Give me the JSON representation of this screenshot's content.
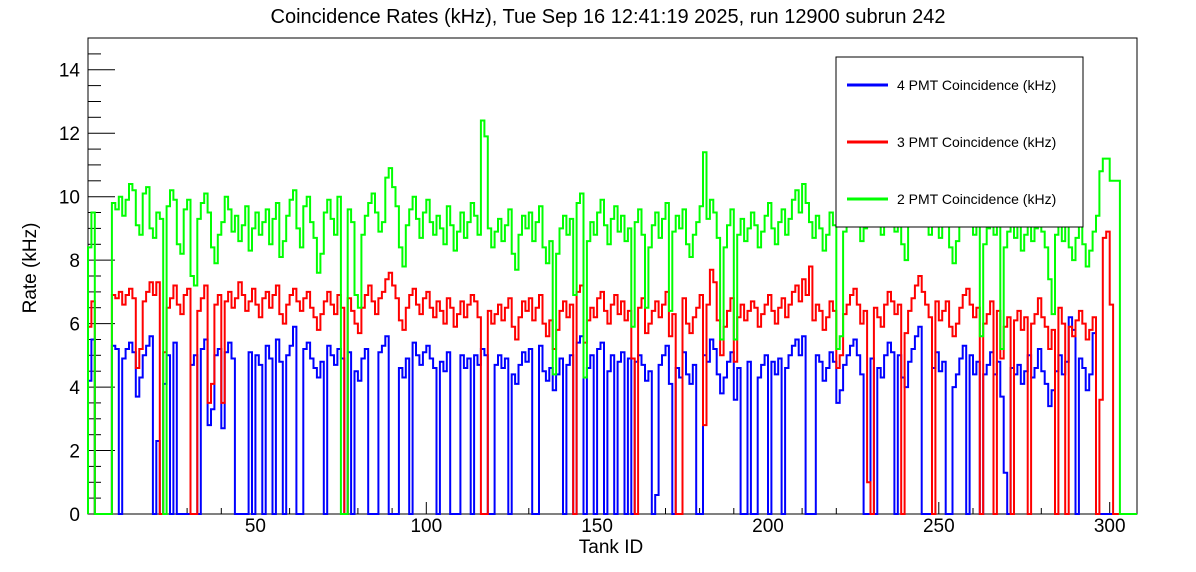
{
  "chart_data": {
    "type": "line",
    "style": "histogram-step",
    "title": "Coincidence Rates (kHz), Tue Sep 16 12:41:19 2025, run 12900 subrun 242",
    "xlabel": "Tank ID",
    "ylabel": "Rate (kHz)",
    "xlim": [
      1,
      308
    ],
    "ylim": [
      0,
      15
    ],
    "bin_start": 1,
    "bin_width": 1,
    "x_major_ticks": [
      50,
      100,
      150,
      200,
      250,
      300
    ],
    "x_minor_step": 10,
    "y_major_ticks": [
      0,
      2,
      4,
      6,
      8,
      10,
      12,
      14
    ],
    "y_minor_step": 0.5,
    "grid": false,
    "legend_position": "top-right",
    "frame_color": "#000000",
    "background_color": "#ffffff",
    "series": [
      {
        "name": "4 PMT Coincidence (kHz)",
        "color": "#0000ff",
        "values": [
          4.2,
          5.5,
          0,
          0,
          0,
          0,
          0,
          5.3,
          5.2,
          0,
          4.9,
          5.2,
          5.4,
          5.1,
          3.7,
          4.3,
          5.0,
          5.3,
          5.6,
          0,
          2.3,
          0,
          4.1,
          5.0,
          0,
          5.4,
          0,
          0,
          0,
          0,
          4.7,
          5.0,
          0,
          5.2,
          5.5,
          2.8,
          3.3,
          5.0,
          5.2,
          2.7,
          5.1,
          5.4,
          4.9,
          0,
          0,
          0,
          0,
          5.1,
          0,
          5.0,
          4.7,
          0,
          5.3,
          4.9,
          0,
          5.5,
          4.8,
          0,
          5.0,
          5.3,
          5.9,
          0,
          0,
          5.2,
          5.4,
          4.9,
          4.6,
          4.3,
          4.8,
          0,
          5.3,
          5.0,
          4.7,
          5.2,
          4.9,
          0,
          5.1,
          0,
          4.5,
          4.2,
          4.9,
          5.2,
          0,
          0,
          0,
          5.1,
          5.3,
          5.6,
          0,
          0,
          0,
          4.6,
          4.3,
          4.9,
          0,
          5.4,
          5.0,
          4.7,
          5.1,
          5.3,
          4.9,
          4.6,
          0,
          4.8,
          4.5,
          5.1,
          0,
          0,
          0,
          5.0,
          4.6,
          4.9,
          0,
          5.0,
          4.7,
          5.2,
          5.0,
          0,
          0,
          4.7,
          5.0,
          4.6,
          4.9,
          0,
          4.4,
          4.1,
          4.7,
          5.1,
          4.8,
          5.2,
          0,
          0,
          5.3,
          4.5,
          4.2,
          4.6,
          3.9,
          4.4,
          4.9,
          0,
          4.7,
          5.0,
          0,
          5.4,
          5.6,
          0,
          4.6,
          5.0,
          0,
          5.2,
          5.4,
          0,
          4.5,
          5.0,
          0,
          4.8,
          5.1,
          0,
          4.9,
          0,
          4.8,
          5.0,
          4.7,
          4.2,
          4.5,
          0,
          0.6,
          4.7,
          5.0,
          5.3,
          4.1,
          0,
          4.6,
          4.3,
          5.1,
          4.4,
          4.1,
          4.7,
          0,
          0,
          5.0,
          4.8,
          5.5,
          5.2,
          4.4,
          3.8,
          4.3,
          4.8,
          5.1,
          3.6,
          4.6,
          0,
          0,
          4.8,
          0,
          0,
          4.3,
          4.7,
          5.0,
          0,
          4.8,
          4.4,
          4.9,
          0,
          4.6,
          5.0,
          5.3,
          5.5,
          5.0,
          5.6,
          0,
          0,
          0,
          5.0,
          4.8,
          4.2,
          4.6,
          5.1,
          4.8,
          3.5,
          3.9,
          4.7,
          5.0,
          5.3,
          5.5,
          5.0,
          4.4,
          0,
          0,
          4.9,
          0,
          4.6,
          4.3,
          5.0,
          5.4,
          5.1,
          0,
          5.0,
          4.3,
          4.0,
          4.8,
          5.2,
          5.6,
          5.9,
          0,
          0,
          0,
          4.6,
          5.1,
          4.5,
          4.8,
          0,
          0,
          4.0,
          4.4,
          4.9,
          5.3,
          0,
          5.0,
          4.4,
          4.8,
          0,
          4.4,
          4.7,
          5.1,
          4.4,
          4.8,
          3.7,
          1.3,
          0,
          4.6,
          4.4,
          4.7,
          4.1,
          4.5,
          5.0,
          4.3,
          4.6,
          5.2,
          4.5,
          4.1,
          3.4,
          3.9,
          4.5,
          5.0,
          4.4,
          4.8,
          6.2,
          5.8,
          0,
          4.9,
          4.6,
          3.9,
          4.4,
          5.7,
          0,
          0,
          0,
          0,
          0,
          0,
          0,
          0,
          0,
          0,
          0,
          0
        ]
      },
      {
        "name": "3 PMT Coincidence (kHz)",
        "color": "#ff0000",
        "values": [
          5.9,
          6.7,
          0,
          0,
          0,
          0,
          0,
          6.9,
          6.8,
          7.0,
          6.6,
          6.9,
          7.1,
          6.8,
          4.6,
          5.2,
          6.7,
          7.0,
          7.3,
          6.9,
          7.3,
          0,
          5.1,
          6.5,
          6.8,
          7.2,
          6.6,
          6.3,
          6.9,
          7.1,
          0,
          0,
          6.4,
          6.8,
          7.2,
          3.5,
          4.1,
          6.6,
          6.9,
          3.5,
          6.7,
          7.0,
          6.5,
          6.8,
          7.3,
          6.9,
          6.4,
          6.7,
          7.1,
          6.6,
          6.2,
          6.8,
          7.0,
          6.5,
          6.9,
          7.2,
          6.3,
          6.0,
          6.6,
          6.9,
          7.1,
          6.7,
          6.4,
          6.8,
          7.0,
          6.5,
          6.2,
          5.8,
          6.3,
          6.7,
          7.0,
          6.6,
          6.3,
          6.9,
          6.5,
          0,
          6.8,
          6.4,
          6.0,
          5.7,
          6.5,
          6.9,
          7.2,
          6.7,
          6.3,
          6.8,
          7.0,
          7.4,
          7.6,
          7.2,
          6.8,
          6.1,
          5.8,
          6.5,
          6.9,
          7.1,
          6.6,
          6.3,
          6.8,
          7.0,
          6.5,
          6.2,
          6.7,
          6.4,
          6.0,
          6.8,
          6.5,
          5.9,
          6.3,
          6.7,
          6.2,
          6.6,
          6.9,
          6.7,
          6.2,
          0,
          0,
          6.4,
          6.0,
          6.3,
          6.6,
          6.1,
          6.5,
          6.8,
          5.9,
          5.5,
          6.2,
          6.7,
          6.4,
          6.8,
          6.1,
          6.5,
          6.9,
          6.0,
          5.6,
          6.1,
          5.2,
          5.8,
          6.4,
          6.7,
          6.2,
          6.6,
          0,
          7.0,
          7.2,
          5.4,
          6.1,
          6.5,
          6.2,
          6.8,
          7.0,
          6.4,
          6.0,
          6.6,
          6.9,
          6.3,
          6.7,
          6.1,
          6.4,
          4.9,
          0,
          6.5,
          6.8,
          5.7,
          6.0,
          6.4,
          6.7,
          6.2,
          6.6,
          7.0,
          5.6,
          6.3,
          0,
          0,
          6.8,
          6.0,
          5.7,
          6.2,
          6.5,
          6.9,
          2.8,
          6.6,
          7.7,
          7.3,
          6.1,
          5.0,
          5.9,
          6.4,
          6.8,
          4.8,
          6.2,
          6.6,
          6.1,
          6.4,
          6.7,
          6.5,
          5.9,
          6.3,
          6.6,
          6.9,
          6.4,
          6.0,
          6.5,
          6.8,
          6.2,
          6.6,
          7.0,
          7.2,
          6.7,
          7.4,
          6.9,
          7.8,
          6.1,
          6.6,
          6.4,
          5.8,
          6.2,
          6.7,
          6.4,
          4.6,
          5.0,
          6.3,
          6.6,
          6.9,
          7.1,
          6.6,
          6.0,
          6.4,
          1.0,
          0,
          6.5,
          6.2,
          5.9,
          6.6,
          7.0,
          6.7,
          6.3,
          6.6,
          0,
          5.7,
          6.4,
          6.8,
          7.2,
          7.5,
          7.0,
          6.6,
          6.2,
          0,
          6.7,
          6.1,
          6.4,
          6.7,
          5.9,
          5.6,
          6.0,
          6.5,
          6.9,
          7.1,
          6.6,
          6.2,
          6.5,
          0,
          6.0,
          6.3,
          6.7,
          0,
          6.4,
          4.9,
          5.9,
          6.2,
          0,
          6.1,
          6.4,
          5.8,
          6.2,
          0,
          6.0,
          6.3,
          6.8,
          6.2,
          5.9,
          5.2,
          5.8,
          0,
          6.5,
          6.0,
          0,
          5.9,
          5.6,
          6.1,
          6.4,
          6.0,
          5.5,
          5.8,
          6.2,
          0,
          3.6,
          8.7,
          8.9,
          6.6,
          0,
          0,
          0,
          0,
          0,
          0,
          0
        ]
      },
      {
        "name": "2 PMT Coincidence (kHz)",
        "color": "#00ff00",
        "values": [
          8.4,
          9.5,
          0,
          0,
          0,
          0,
          0,
          9.8,
          9.6,
          10.0,
          9.4,
          9.9,
          10.4,
          10.2,
          9.1,
          8.8,
          10.1,
          10.3,
          9.0,
          8.7,
          9.5,
          9.3,
          0,
          9.7,
          10.2,
          9.9,
          8.5,
          8.2,
          9.6,
          9.9,
          7.5,
          7.2,
          9.3,
          9.8,
          10.1,
          9.5,
          8.4,
          7.9,
          8.8,
          9.2,
          10.0,
          9.6,
          8.9,
          9.4,
          8.6,
          9.1,
          9.7,
          8.3,
          9.0,
          9.5,
          8.8,
          9.2,
          9.6,
          8.5,
          9.3,
          9.8,
          8.1,
          8.6,
          9.4,
          9.9,
          10.2,
          9.0,
          8.4,
          9.7,
          10.0,
          9.2,
          8.7,
          7.6,
          8.2,
          9.5,
          9.9,
          9.3,
          8.8,
          10.0,
          0,
          0,
          9.6,
          9.2,
          6.9,
          6.5,
          8.8,
          9.4,
          9.8,
          10.1,
          9.5,
          8.9,
          9.2,
          10.6,
          10.9,
          10.3,
          9.7,
          8.4,
          7.8,
          9.1,
          9.6,
          10.0,
          9.3,
          8.7,
          9.5,
          9.9,
          9.2,
          8.8,
          9.4,
          9.0,
          8.5,
          9.7,
          9.1,
          8.3,
          8.9,
          9.5,
          8.7,
          9.2,
          9.8,
          9.4,
          8.8,
          12.4,
          11.9,
          9.0,
          8.4,
          8.9,
          9.3,
          8.6,
          9.1,
          9.6,
          8.2,
          7.7,
          8.8,
          9.4,
          9.0,
          9.5,
          8.6,
          9.2,
          9.7,
          8.4,
          7.9,
          8.6,
          4.4,
          8.2,
          9.0,
          9.4,
          8.8,
          9.3,
          6.9,
          9.8,
          10.1,
          4.3,
          8.6,
          9.2,
          8.8,
          9.5,
          9.9,
          9.1,
          8.5,
          9.3,
          9.7,
          8.9,
          9.4,
          8.6,
          9.0,
          5.9,
          9.2,
          9.6,
          8.8,
          6.5,
          8.4,
          9.1,
          9.5,
          8.7,
          9.3,
          9.8,
          6.4,
          8.9,
          9.4,
          9.0,
          9.6,
          8.5,
          8.1,
          8.8,
          9.2,
          9.7,
          11.4,
          9.3,
          9.9,
          9.5,
          8.7,
          5.5,
          8.4,
          9.1,
          9.6,
          5.5,
          8.8,
          9.3,
          8.6,
          9.0,
          9.5,
          9.1,
          8.4,
          8.9,
          9.4,
          9.8,
          9.0,
          8.5,
          9.2,
          9.6,
          8.8,
          9.3,
          9.9,
          10.2,
          9.5,
          10.4,
          9.8,
          9.2,
          8.7,
          9.4,
          9.0,
          8.3,
          8.8,
          9.5,
          9.1,
          5.2,
          5.6,
          8.9,
          9.4,
          9.8,
          10.1,
          9.3,
          8.6,
          9.0,
          9.5,
          10.7,
          9.7,
          9.2,
          8.8,
          9.4,
          10.0,
          9.6,
          8.9,
          9.3,
          8.5,
          8.0,
          9.1,
          9.7,
          10.3,
          10.8,
          10.0,
          9.4,
          8.8,
          9.2,
          9.6,
          8.7,
          9.1,
          9.5,
          8.4,
          7.9,
          8.6,
          9.2,
          9.8,
          10.1,
          9.4,
          8.8,
          9.3,
          5.6,
          8.5,
          9.0,
          9.6,
          8.8,
          9.2,
          5.2,
          8.4,
          8.9,
          9.5,
          8.7,
          9.1,
          8.3,
          8.8,
          9.4,
          8.6,
          9.0,
          9.7,
          8.9,
          8.4,
          7.4,
          6.3,
          8.8,
          9.3,
          8.6,
          9.1,
          8.4,
          8.0,
          8.7,
          9.2,
          8.5,
          7.8,
          8.3,
          8.9,
          9.4,
          10.8,
          11.2,
          11.2,
          10.5,
          10.5,
          10.5,
          0,
          0,
          0,
          0,
          0
        ]
      }
    ]
  }
}
